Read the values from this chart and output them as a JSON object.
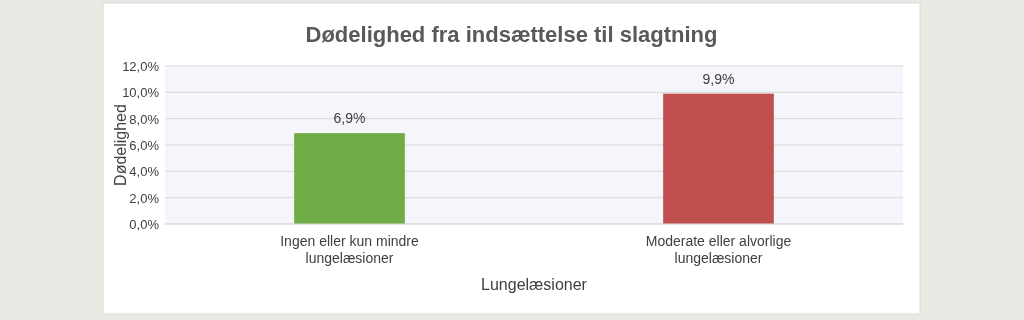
{
  "chart_data": {
    "type": "bar",
    "title": "Dødelighed fra indsættelse til slagtning",
    "xlabel": "Lungelæsioner",
    "ylabel": "Dødelighed",
    "categories": [
      "Ingen eller kun mindre lungelæsioner",
      "Moderate eller alvorlige lungelæsioner"
    ],
    "values": [
      6.9,
      9.9
    ],
    "colors": [
      "#70ad47",
      "#c0504d"
    ],
    "value_labels": [
      "6,9%",
      "9,9%"
    ],
    "ylim": [
      0,
      12
    ],
    "yticks": [
      {
        "value": 0,
        "label": "0,0%"
      },
      {
        "value": 2,
        "label": "2,0%"
      },
      {
        "value": 4,
        "label": "4,0%"
      },
      {
        "value": 6,
        "label": "6,0%"
      },
      {
        "value": 8,
        "label": "8,0%"
      },
      {
        "value": 10,
        "label": "10,0%"
      },
      {
        "value": 12,
        "label": "12,0%"
      }
    ],
    "grid": "y"
  }
}
